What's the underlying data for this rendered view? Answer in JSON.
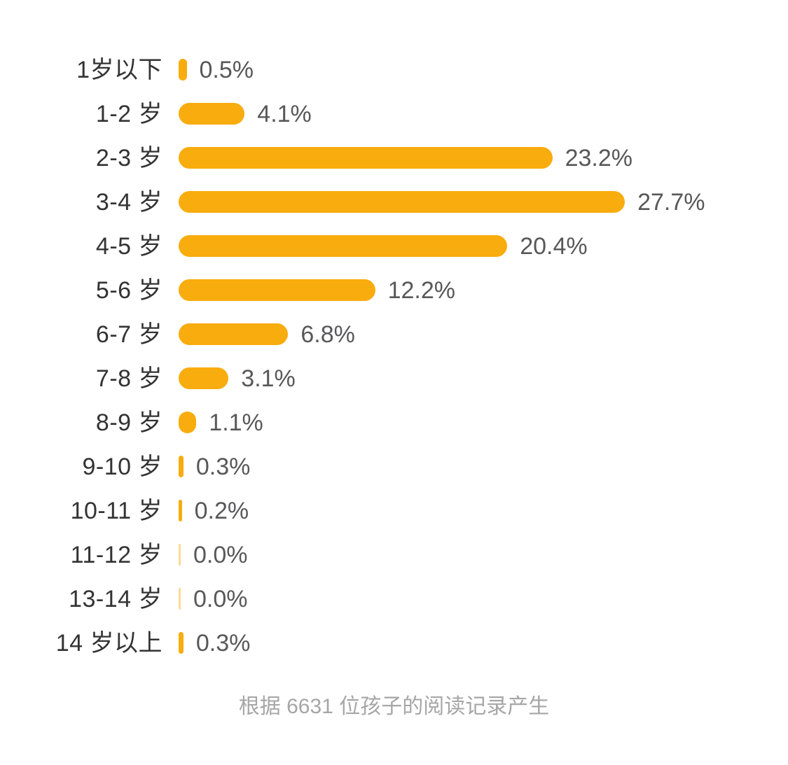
{
  "chart_data": {
    "type": "bar",
    "orientation": "horizontal",
    "categories": [
      "1岁以下",
      "1-2 岁",
      "2-3 岁",
      "3-4 岁",
      "4-5 岁",
      "5-6 岁",
      "6-7 岁",
      "7-8 岁",
      "8-9 岁",
      "9-10 岁",
      "10-11 岁",
      "11-12 岁",
      "13-14 岁",
      "14 岁以上"
    ],
    "values": [
      0.5,
      4.1,
      23.2,
      27.7,
      20.4,
      12.2,
      6.8,
      3.1,
      1.1,
      0.3,
      0.2,
      0.0,
      0.0,
      0.3
    ],
    "value_labels": [
      "0.5%",
      "4.1%",
      "23.2%",
      "27.7%",
      "20.4%",
      "12.2%",
      "6.8%",
      "3.1%",
      "1.1%",
      "0.3%",
      "0.2%",
      "0.0%",
      "0.0%",
      "0.3%"
    ],
    "xlim": [
      0,
      27.7
    ],
    "bar_color": "#f9ac0d",
    "label_color": "#333333",
    "value_color": "#58585a",
    "grid": false,
    "legend": false,
    "title": "",
    "footnote": "根据 6631 位孩子的阅读记录产生"
  }
}
